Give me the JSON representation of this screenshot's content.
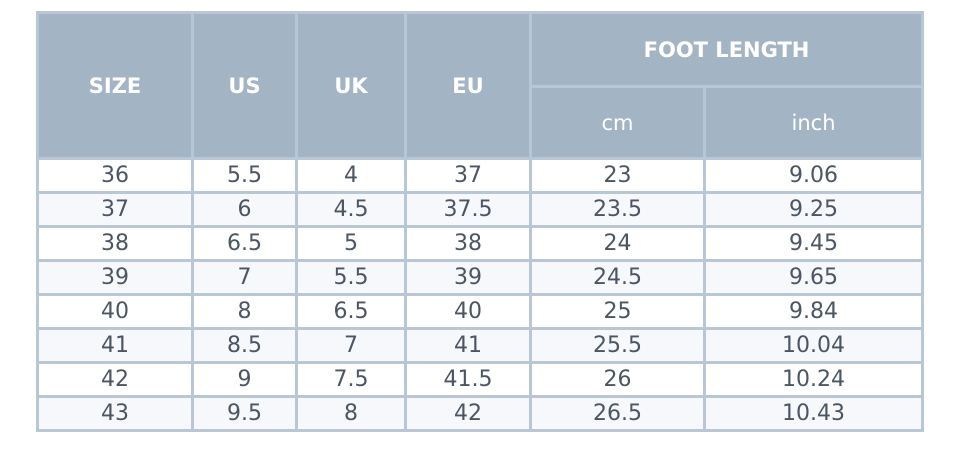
{
  "header": {
    "size": "SIZE",
    "us": "US",
    "uk": "UK",
    "eu": "EU",
    "foot_length": "FOOT LENGTH",
    "cm": "cm",
    "inch": "inch"
  },
  "table": {
    "rows": [
      [
        "36",
        "5.5",
        "4",
        "37",
        "23",
        "9.06"
      ],
      [
        "37",
        "6",
        "4.5",
        "37.5",
        "23.5",
        "9.25"
      ],
      [
        "38",
        "6.5",
        "5",
        "38",
        "24",
        "9.45"
      ],
      [
        "39",
        "7",
        "5.5",
        "39",
        "24.5",
        "9.65"
      ],
      [
        "40",
        "8",
        "6.5",
        "40",
        "25",
        "9.84"
      ],
      [
        "41",
        "8.5",
        "7",
        "41",
        "25.5",
        "10.04"
      ],
      [
        "42",
        "9",
        "7.5",
        "41.5",
        "26",
        "10.24"
      ],
      [
        "43",
        "9.5",
        "8",
        "42",
        "26.5",
        "10.43"
      ]
    ]
  }
}
